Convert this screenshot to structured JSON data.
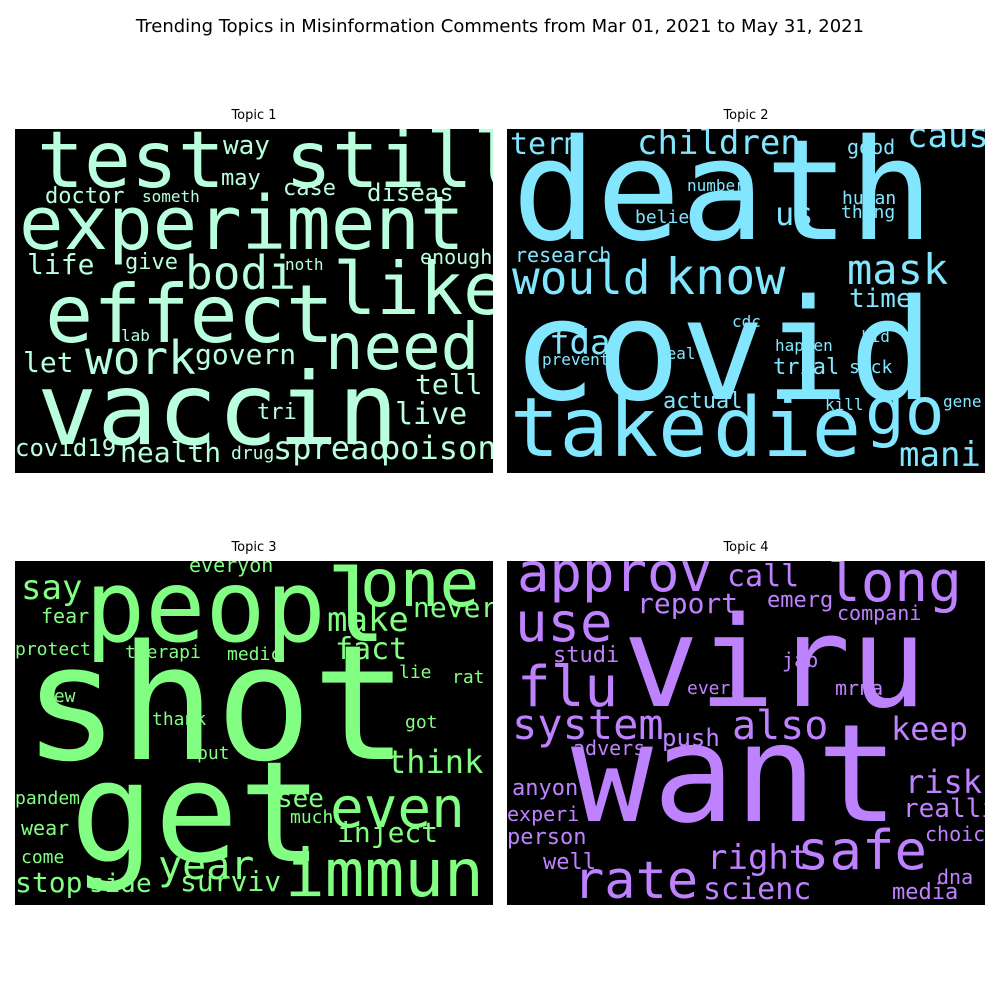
{
  "page_title": "Trending Topics in Misinformation Comments from Mar 01, 2021 to May 31, 2021",
  "chart_data": [
    {
      "type": "wordcloud",
      "title": "Topic 1",
      "color": "#b9ffdd",
      "words": [
        "test",
        "still",
        "experiment",
        "effect",
        "like",
        "need",
        "vaccin",
        "bodi",
        "work",
        "govern",
        "way",
        "may",
        "case",
        "diseas",
        "doctor",
        "someth",
        "life",
        "give",
        "noth",
        "enough",
        "lab",
        "let",
        "tell",
        "tri",
        "live",
        "covid19",
        "health",
        "drug",
        "spread",
        "poison"
      ]
    },
    {
      "type": "wordcloud",
      "title": "Topic 2",
      "color": "#82e6ff",
      "words": [
        "death",
        "covid",
        "take",
        "die",
        "would",
        "know",
        "term",
        "children",
        "good",
        "caus",
        "number",
        "human",
        "believ",
        "us",
        "thing",
        "research",
        "mask",
        "time",
        "fda",
        "cdc",
        "happen",
        "kid",
        "prevent",
        "real",
        "trial",
        "sick",
        "actual",
        "kill",
        "go",
        "gene",
        "mani"
      ]
    },
    {
      "type": "wordcloud",
      "title": "Topic 3",
      "color": "#82ff82",
      "words": [
        "peopl",
        "shot",
        "get",
        "one",
        "everyon",
        "say",
        "make",
        "never",
        "fear",
        "fact",
        "protect",
        "therapi",
        "medic",
        "lie",
        "rat",
        "new",
        "thank",
        "got",
        "put",
        "think",
        "pandem",
        "see",
        "even",
        "much",
        "wear",
        "inject",
        "come",
        "year",
        "stop",
        "side",
        "surviv",
        "immun"
      ]
    },
    {
      "type": "wordcloud",
      "title": "Topic 4",
      "color": "#bf82ff",
      "words": [
        "viru",
        "want",
        "approv",
        "call",
        "long",
        "use",
        "report",
        "emerg",
        "compani",
        "studi",
        "jab",
        "flu",
        "everi",
        "mrna",
        "system",
        "also",
        "push",
        "keep",
        "advers",
        "anyon",
        "risk",
        "experi",
        "realli",
        "person",
        "choic",
        "well",
        "right",
        "safe",
        "rate",
        "scienc",
        "dna",
        "media"
      ]
    }
  ]
}
